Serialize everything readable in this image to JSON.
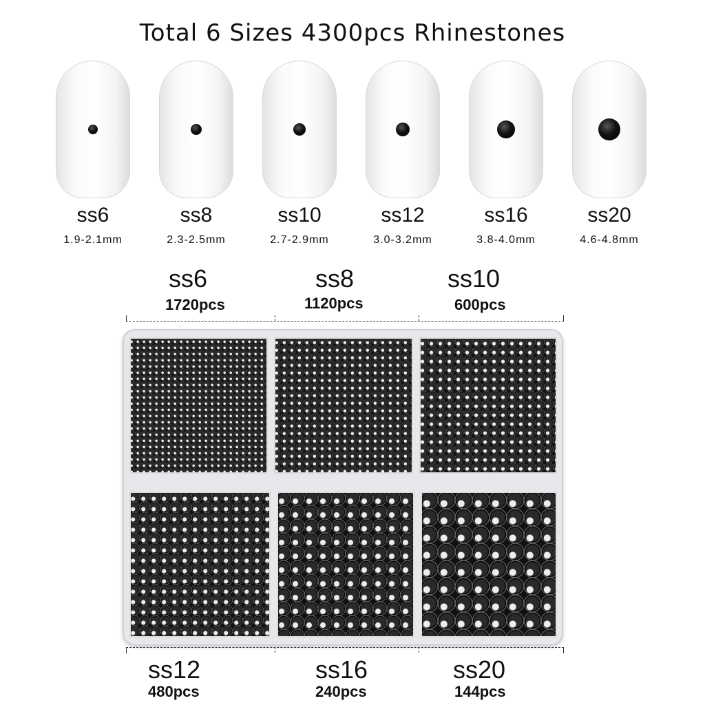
{
  "title": "Total 6 Sizes 4300pcs Rhinestones",
  "sizes": [
    {
      "name": "ss6",
      "mm": "1.9-2.1mm",
      "pcs": "1720pcs"
    },
    {
      "name": "ss8",
      "mm": "2.3-2.5mm",
      "pcs": "1120pcs"
    },
    {
      "name": "ss10",
      "mm": "2.7-2.9mm",
      "pcs": "600pcs"
    },
    {
      "name": "ss12",
      "mm": "3.0-3.2mm",
      "pcs": "480pcs"
    },
    {
      "name": "ss16",
      "mm": "3.8-4.0mm",
      "pcs": "240pcs"
    },
    {
      "name": "ss20",
      "mm": "4.6-4.8mm",
      "pcs": "144pcs"
    }
  ],
  "colors": {
    "stone": "#000000",
    "background": "#ffffff"
  }
}
